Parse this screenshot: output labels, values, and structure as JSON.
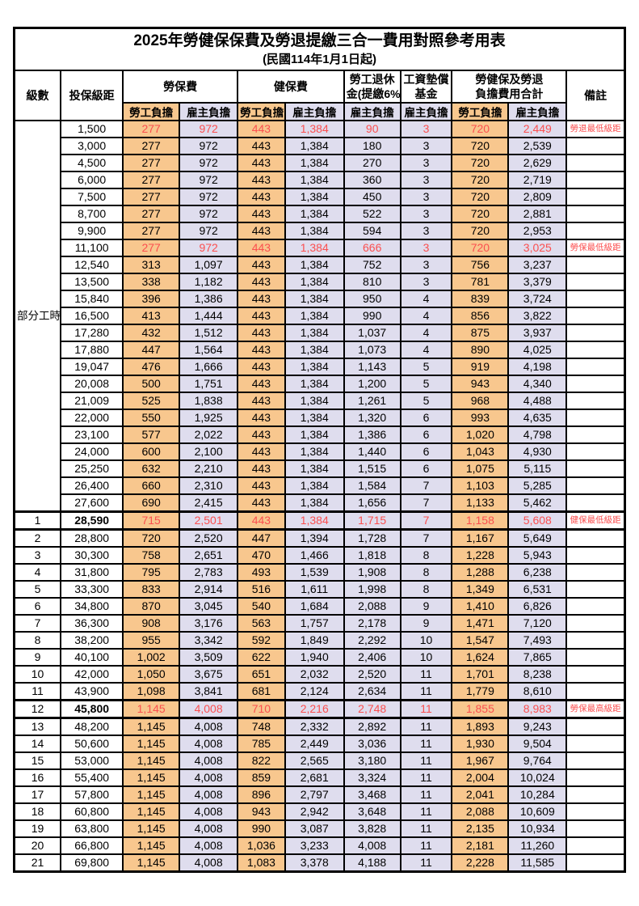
{
  "title": "2025年勞健保保費及勞退提繳三合一費用對照參考用表",
  "subtitle": "(民國114年1月1日起)",
  "colors": {
    "employee_bg": "#F8C78E",
    "employer_bg": "#DFDDEE",
    "highlight_red": "#FB4F4F"
  },
  "columns": {
    "level": "級數",
    "salary": "投保級距",
    "labor_insurance": "勞保費",
    "health_insurance": "健保費",
    "pension_line1": "勞工退休",
    "pension_line2": "金(提繳6%)",
    "wage_fund_line1": "工資墊償",
    "wage_fund_line2": "基金",
    "total_line1": "勞健保及勞退",
    "total_line2": "負擔費用合計",
    "remark": "備註",
    "employee_label": "勞工負擔",
    "employer_label": "雇主負擔"
  },
  "part_time_group": {
    "label": "部分工時",
    "rowspan": 23
  },
  "rows": [
    {
      "level": null,
      "salary": "1,500",
      "values": [
        "277",
        "972",
        "443",
        "1,384",
        "90",
        "3",
        "720",
        "2,449"
      ],
      "note": "勞退最低級距",
      "red": true,
      "bold": false,
      "thick": false
    },
    {
      "level": null,
      "salary": "3,000",
      "values": [
        "277",
        "972",
        "443",
        "1,384",
        "180",
        "3",
        "720",
        "2,539"
      ],
      "note": "",
      "red": false,
      "bold": false,
      "thick": false
    },
    {
      "level": null,
      "salary": "4,500",
      "values": [
        "277",
        "972",
        "443",
        "1,384",
        "270",
        "3",
        "720",
        "2,629"
      ],
      "note": "",
      "red": false,
      "bold": false,
      "thick": false
    },
    {
      "level": null,
      "salary": "6,000",
      "values": [
        "277",
        "972",
        "443",
        "1,384",
        "360",
        "3",
        "720",
        "2,719"
      ],
      "note": "",
      "red": false,
      "bold": false,
      "thick": false
    },
    {
      "level": null,
      "salary": "7,500",
      "values": [
        "277",
        "972",
        "443",
        "1,384",
        "450",
        "3",
        "720",
        "2,809"
      ],
      "note": "",
      "red": false,
      "bold": false,
      "thick": false
    },
    {
      "level": null,
      "salary": "8,700",
      "values": [
        "277",
        "972",
        "443",
        "1,384",
        "522",
        "3",
        "720",
        "2,881"
      ],
      "note": "",
      "red": false,
      "bold": false,
      "thick": false
    },
    {
      "level": null,
      "salary": "9,900",
      "values": [
        "277",
        "972",
        "443",
        "1,384",
        "594",
        "3",
        "720",
        "2,953"
      ],
      "note": "",
      "red": false,
      "bold": false,
      "thick": false
    },
    {
      "level": null,
      "salary": "11,100",
      "values": [
        "277",
        "972",
        "443",
        "1,384",
        "666",
        "3",
        "720",
        "3,025"
      ],
      "note": "勞保最低級距",
      "red": true,
      "bold": false,
      "thick": false
    },
    {
      "level": null,
      "salary": "12,540",
      "values": [
        "313",
        "1,097",
        "443",
        "1,384",
        "752",
        "3",
        "756",
        "3,237"
      ],
      "note": "",
      "red": false,
      "bold": false,
      "thick": false
    },
    {
      "level": null,
      "salary": "13,500",
      "values": [
        "338",
        "1,182",
        "443",
        "1,384",
        "810",
        "3",
        "781",
        "3,379"
      ],
      "note": "",
      "red": false,
      "bold": false,
      "thick": false
    },
    {
      "level": null,
      "salary": "15,840",
      "values": [
        "396",
        "1,386",
        "443",
        "1,384",
        "950",
        "4",
        "839",
        "3,724"
      ],
      "note": "",
      "red": false,
      "bold": false,
      "thick": false
    },
    {
      "level": null,
      "salary": "16,500",
      "values": [
        "413",
        "1,444",
        "443",
        "1,384",
        "990",
        "4",
        "856",
        "3,822"
      ],
      "note": "",
      "red": false,
      "bold": false,
      "thick": false
    },
    {
      "level": null,
      "salary": "17,280",
      "values": [
        "432",
        "1,512",
        "443",
        "1,384",
        "1,037",
        "4",
        "875",
        "3,937"
      ],
      "note": "",
      "red": false,
      "bold": false,
      "thick": false
    },
    {
      "level": null,
      "salary": "17,880",
      "values": [
        "447",
        "1,564",
        "443",
        "1,384",
        "1,073",
        "4",
        "890",
        "4,025"
      ],
      "note": "",
      "red": false,
      "bold": false,
      "thick": false
    },
    {
      "level": null,
      "salary": "19,047",
      "values": [
        "476",
        "1,666",
        "443",
        "1,384",
        "1,143",
        "5",
        "919",
        "4,198"
      ],
      "note": "",
      "red": false,
      "bold": false,
      "thick": false
    },
    {
      "level": null,
      "salary": "20,008",
      "values": [
        "500",
        "1,751",
        "443",
        "1,384",
        "1,200",
        "5",
        "943",
        "4,340"
      ],
      "note": "",
      "red": false,
      "bold": false,
      "thick": false
    },
    {
      "level": null,
      "salary": "21,009",
      "values": [
        "525",
        "1,838",
        "443",
        "1,384",
        "1,261",
        "5",
        "968",
        "4,488"
      ],
      "note": "",
      "red": false,
      "bold": false,
      "thick": false
    },
    {
      "level": null,
      "salary": "22,000",
      "values": [
        "550",
        "1,925",
        "443",
        "1,384",
        "1,320",
        "6",
        "993",
        "4,635"
      ],
      "note": "",
      "red": false,
      "bold": false,
      "thick": false
    },
    {
      "level": null,
      "salary": "23,100",
      "values": [
        "577",
        "2,022",
        "443",
        "1,384",
        "1,386",
        "6",
        "1,020",
        "4,798"
      ],
      "note": "",
      "red": false,
      "bold": false,
      "thick": false
    },
    {
      "level": null,
      "salary": "24,000",
      "values": [
        "600",
        "2,100",
        "443",
        "1,384",
        "1,440",
        "6",
        "1,043",
        "4,930"
      ],
      "note": "",
      "red": false,
      "bold": false,
      "thick": false
    },
    {
      "level": null,
      "salary": "25,250",
      "values": [
        "632",
        "2,210",
        "443",
        "1,384",
        "1,515",
        "6",
        "1,075",
        "5,115"
      ],
      "note": "",
      "red": false,
      "bold": false,
      "thick": false
    },
    {
      "level": null,
      "salary": "26,400",
      "values": [
        "660",
        "2,310",
        "443",
        "1,384",
        "1,584",
        "7",
        "1,103",
        "5,285"
      ],
      "note": "",
      "red": false,
      "bold": false,
      "thick": false
    },
    {
      "level": null,
      "salary": "27,600",
      "values": [
        "690",
        "2,415",
        "443",
        "1,384",
        "1,656",
        "7",
        "1,133",
        "5,462"
      ],
      "note": "",
      "red": false,
      "bold": false,
      "thick": false
    },
    {
      "level": "1",
      "salary": "28,590",
      "values": [
        "715",
        "2,501",
        "443",
        "1,384",
        "1,715",
        "7",
        "1,158",
        "5,608"
      ],
      "note": "健保最低級距",
      "red": true,
      "bold": true,
      "thick": true
    },
    {
      "level": "2",
      "salary": "28,800",
      "values": [
        "720",
        "2,520",
        "447",
        "1,394",
        "1,728",
        "7",
        "1,167",
        "5,649"
      ],
      "note": "",
      "red": false,
      "bold": false,
      "thick": false
    },
    {
      "level": "3",
      "salary": "30,300",
      "values": [
        "758",
        "2,651",
        "470",
        "1,466",
        "1,818",
        "8",
        "1,228",
        "5,943"
      ],
      "note": "",
      "red": false,
      "bold": false,
      "thick": false
    },
    {
      "level": "4",
      "salary": "31,800",
      "values": [
        "795",
        "2,783",
        "493",
        "1,539",
        "1,908",
        "8",
        "1,288",
        "6,238"
      ],
      "note": "",
      "red": false,
      "bold": false,
      "thick": false
    },
    {
      "level": "5",
      "salary": "33,300",
      "values": [
        "833",
        "2,914",
        "516",
        "1,611",
        "1,998",
        "8",
        "1,349",
        "6,531"
      ],
      "note": "",
      "red": false,
      "bold": false,
      "thick": false
    },
    {
      "level": "6",
      "salary": "34,800",
      "values": [
        "870",
        "3,045",
        "540",
        "1,684",
        "2,088",
        "9",
        "1,410",
        "6,826"
      ],
      "note": "",
      "red": false,
      "bold": false,
      "thick": false
    },
    {
      "level": "7",
      "salary": "36,300",
      "values": [
        "908",
        "3,176",
        "563",
        "1,757",
        "2,178",
        "9",
        "1,471",
        "7,120"
      ],
      "note": "",
      "red": false,
      "bold": false,
      "thick": false
    },
    {
      "level": "8",
      "salary": "38,200",
      "values": [
        "955",
        "3,342",
        "592",
        "1,849",
        "2,292",
        "10",
        "1,547",
        "7,493"
      ],
      "note": "",
      "red": false,
      "bold": false,
      "thick": false
    },
    {
      "level": "9",
      "salary": "40,100",
      "values": [
        "1,002",
        "3,509",
        "622",
        "1,940",
        "2,406",
        "10",
        "1,624",
        "7,865"
      ],
      "note": "",
      "red": false,
      "bold": false,
      "thick": false
    },
    {
      "level": "10",
      "salary": "42,000",
      "values": [
        "1,050",
        "3,675",
        "651",
        "2,032",
        "2,520",
        "11",
        "1,701",
        "8,238"
      ],
      "note": "",
      "red": false,
      "bold": false,
      "thick": false
    },
    {
      "level": "11",
      "salary": "43,900",
      "values": [
        "1,098",
        "3,841",
        "681",
        "2,124",
        "2,634",
        "11",
        "1,779",
        "8,610"
      ],
      "note": "",
      "red": false,
      "bold": false,
      "thick": false
    },
    {
      "level": "12",
      "salary": "45,800",
      "values": [
        "1,145",
        "4,008",
        "710",
        "2,216",
        "2,748",
        "11",
        "1,855",
        "8,983"
      ],
      "note": "勞保最高級距",
      "red": true,
      "bold": true,
      "thick": true
    },
    {
      "level": "13",
      "salary": "48,200",
      "values": [
        "1,145",
        "4,008",
        "748",
        "2,332",
        "2,892",
        "11",
        "1,893",
        "9,243"
      ],
      "note": "",
      "red": false,
      "bold": false,
      "thick": false
    },
    {
      "level": "14",
      "salary": "50,600",
      "values": [
        "1,145",
        "4,008",
        "785",
        "2,449",
        "3,036",
        "11",
        "1,930",
        "9,504"
      ],
      "note": "",
      "red": false,
      "bold": false,
      "thick": false
    },
    {
      "level": "15",
      "salary": "53,000",
      "values": [
        "1,145",
        "4,008",
        "822",
        "2,565",
        "3,180",
        "11",
        "1,967",
        "9,764"
      ],
      "note": "",
      "red": false,
      "bold": false,
      "thick": false
    },
    {
      "level": "16",
      "salary": "55,400",
      "values": [
        "1,145",
        "4,008",
        "859",
        "2,681",
        "3,324",
        "11",
        "2,004",
        "10,024"
      ],
      "note": "",
      "red": false,
      "bold": false,
      "thick": false
    },
    {
      "level": "17",
      "salary": "57,800",
      "values": [
        "1,145",
        "4,008",
        "896",
        "2,797",
        "3,468",
        "11",
        "2,041",
        "10,284"
      ],
      "note": "",
      "red": false,
      "bold": false,
      "thick": false
    },
    {
      "level": "18",
      "salary": "60,800",
      "values": [
        "1,145",
        "4,008",
        "943",
        "2,942",
        "3,648",
        "11",
        "2,088",
        "10,609"
      ],
      "note": "",
      "red": false,
      "bold": false,
      "thick": false
    },
    {
      "level": "19",
      "salary": "63,800",
      "values": [
        "1,145",
        "4,008",
        "990",
        "3,087",
        "3,828",
        "11",
        "2,135",
        "10,934"
      ],
      "note": "",
      "red": false,
      "bold": false,
      "thick": false
    },
    {
      "level": "20",
      "salary": "66,800",
      "values": [
        "1,145",
        "4,008",
        "1,036",
        "3,233",
        "4,008",
        "11",
        "2,181",
        "11,260"
      ],
      "note": "",
      "red": false,
      "bold": false,
      "thick": false
    },
    {
      "level": "21",
      "salary": "69,800",
      "values": [
        "1,145",
        "4,008",
        "1,083",
        "3,378",
        "4,188",
        "11",
        "2,228",
        "11,585"
      ],
      "note": "",
      "red": false,
      "bold": false,
      "thick": false
    }
  ]
}
